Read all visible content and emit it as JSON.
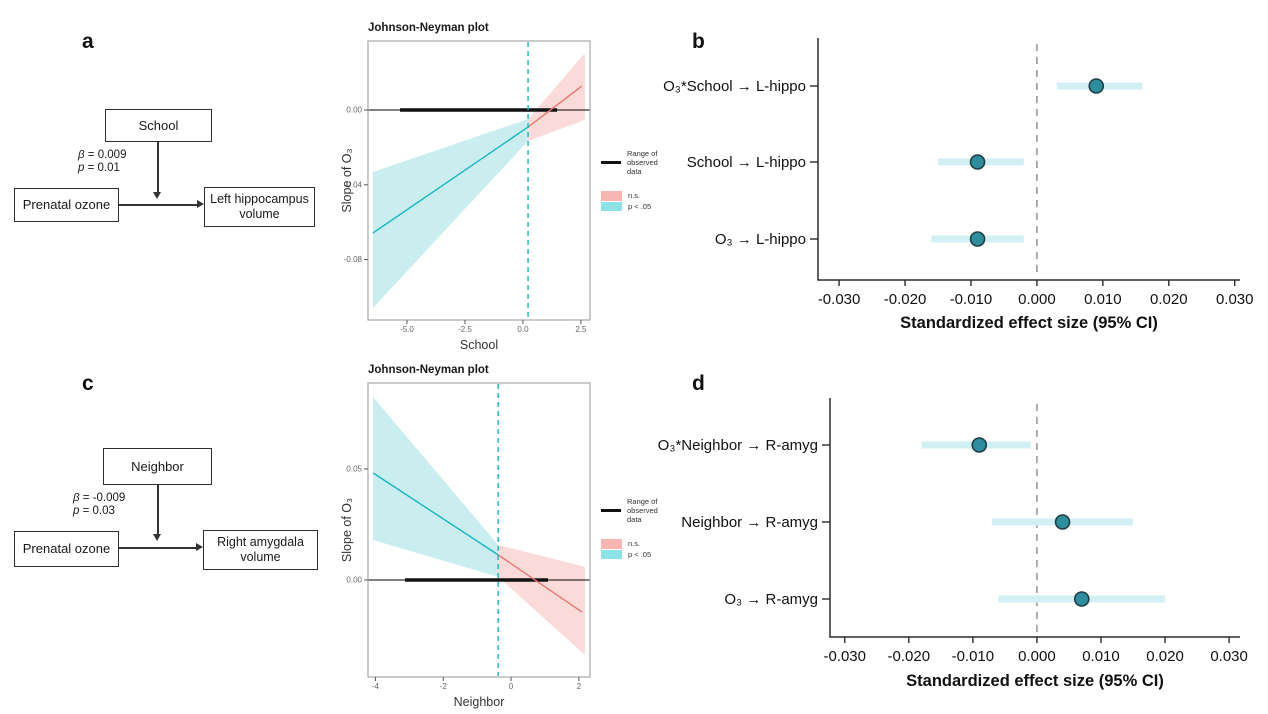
{
  "panel_labels": {
    "a": "a",
    "b": "b",
    "c": "c",
    "d": "d"
  },
  "diagram_a": {
    "moderator": "School",
    "beta_sym": "β",
    "beta_val": "= 0.009",
    "p_sym": "p",
    "p_val": "= 0.01",
    "predictor": "Prenatal ozone",
    "outcome": "Left hippocampus volume"
  },
  "diagram_c": {
    "moderator": "Neighbor",
    "beta_sym": "β",
    "beta_val": "= -0.009",
    "p_sym": "p",
    "p_val": "= 0.03",
    "predictor": "Prenatal ozone",
    "outcome": "Right amygdala volume"
  },
  "legend": {
    "range_label": "Range of observed data",
    "ns_label": "n.s.",
    "sig_label": "p < .05"
  },
  "colors": {
    "sig_line": "#18b5c2",
    "sig_fill": "#caeef0",
    "ns_line": "#e8766d",
    "ns_fill": "#fbdbd9",
    "threshold": "#18b5c2",
    "observed_line": "#111111",
    "zero_line": "#000000",
    "ci_bar": "#d2f0f4",
    "point_fill": "#2f8e9e",
    "point_stroke": "#1e3d45",
    "zero_dash": "#8a8a8a",
    "jn_border": "#a8a8a8",
    "axis": "#2b2b2b",
    "legend_ns_swatch": "#f8b5b1",
    "legend_sig_swatch": "#8ce2e6",
    "jn_tick_text": "#666666",
    "forest_text": "#111111"
  },
  "chart_data": [
    {
      "id": "jn_a",
      "type": "line",
      "panel": "a",
      "title": "Johnson-Neyman plot",
      "xlabel": "School",
      "ylabel": "Slope of O₃",
      "xlim": [
        -6.68,
        2.89
      ],
      "ylim": [
        -0.1123,
        0.0369
      ],
      "xticks": [
        {
          "v": -5.0,
          "label": "-5.0"
        },
        {
          "v": -2.5,
          "label": "-2.5"
        },
        {
          "v": 0.0,
          "label": "0.0"
        },
        {
          "v": 2.5,
          "label": "2.5"
        }
      ],
      "yticks": [
        {
          "v": 0.0,
          "label": "0.00"
        },
        {
          "v": -0.04,
          "label": "-0.04"
        },
        {
          "v": -0.08,
          "label": "-0.08"
        }
      ],
      "threshold_x": 0.22,
      "observed_range": [
        -5.3,
        1.47
      ],
      "zero_line_y": 0.0,
      "sig_line": {
        "x": [
          -6.47,
          0.22
        ],
        "y": [
          -0.0658,
          -0.0091
        ]
      },
      "sig_ribbon": {
        "x": [
          -6.47,
          0.22
        ],
        "top": [
          -0.0332,
          -0.0048
        ],
        "bottom": [
          -0.1059,
          -0.0166
        ]
      },
      "ns_line": {
        "x": [
          0.22,
          2.54
        ],
        "y": [
          -0.0091,
          0.0128
        ]
      },
      "ns_ribbon": {
        "x": [
          0.22,
          2.67
        ],
        "top": [
          -0.0048,
          0.0305
        ],
        "bottom": [
          -0.0166,
          -0.0053
        ]
      },
      "legend": [
        "Range of observed data",
        "n.s.",
        "p < .05"
      ]
    },
    {
      "id": "forest_b",
      "type": "forest",
      "panel": "b",
      "xlabel": "Standardized effect size (95% CI)",
      "xlim": [
        -0.0332,
        0.0308
      ],
      "zero_line": 0.0,
      "xticks": [
        {
          "v": -0.03,
          "label": "-0.030"
        },
        {
          "v": -0.02,
          "label": "-0.020"
        },
        {
          "v": -0.01,
          "label": "-0.010"
        },
        {
          "v": 0.0,
          "label": "0.000"
        },
        {
          "v": 0.01,
          "label": "0.010"
        },
        {
          "v": 0.02,
          "label": "0.020"
        },
        {
          "v": 0.03,
          "label": "0.030"
        }
      ],
      "rows": [
        {
          "label": "O₃*School → L-hippo",
          "estimate": 0.009,
          "ci_low": 0.003,
          "ci_high": 0.016
        },
        {
          "label": "School → L-hippo",
          "estimate": -0.009,
          "ci_low": -0.015,
          "ci_high": -0.002
        },
        {
          "label": "O₃ → L-hippo",
          "estimate": -0.009,
          "ci_low": -0.016,
          "ci_high": -0.002
        }
      ]
    },
    {
      "id": "jn_c",
      "type": "line",
      "panel": "c",
      "title": "Johnson-Neyman plot",
      "xlabel": "Neighbor",
      "ylabel": "Slope of O₃",
      "xlim": [
        -4.22,
        2.33
      ],
      "ylim": [
        -0.0437,
        0.0887
      ],
      "xticks": [
        {
          "v": -4,
          "label": "-4"
        },
        {
          "v": -2,
          "label": "-2"
        },
        {
          "v": 0,
          "label": "0"
        },
        {
          "v": 2,
          "label": "2"
        }
      ],
      "yticks": [
        {
          "v": 0.05,
          "label": "0.05"
        },
        {
          "v": 0.0,
          "label": "0.00"
        }
      ],
      "threshold_x": -0.38,
      "observed_range": [
        -3.13,
        1.09
      ],
      "zero_line_y": 0.0,
      "sig_line": {
        "x": [
          -4.07,
          -0.38
        ],
        "y": [
          0.0482,
          0.0113
        ]
      },
      "sig_ribbon": {
        "x": [
          -4.07,
          -0.38
        ],
        "top": [
          0.0824,
          0.0158
        ],
        "bottom": [
          0.018,
          0.0014
        ]
      },
      "ns_line": {
        "x": [
          -0.38,
          2.09
        ],
        "y": [
          0.0113,
          -0.0144
        ]
      },
      "ns_ribbon": {
        "x": [
          -0.38,
          2.18
        ],
        "top": [
          0.0158,
          0.0059
        ],
        "bottom": [
          0.0014,
          -0.0338
        ]
      },
      "legend": [
        "Range of observed data",
        "n.s.",
        "p < .05"
      ]
    },
    {
      "id": "forest_d",
      "type": "forest",
      "panel": "d",
      "xlabel": "Standardized effect size (95% CI)",
      "xlim": [
        -0.0323,
        0.0317
      ],
      "zero_line": 0.0,
      "xticks": [
        {
          "v": -0.03,
          "label": "-0.030"
        },
        {
          "v": -0.02,
          "label": "-0.020"
        },
        {
          "v": -0.01,
          "label": "-0.010"
        },
        {
          "v": 0.0,
          "label": "0.000"
        },
        {
          "v": 0.01,
          "label": "0.010"
        },
        {
          "v": 0.02,
          "label": "0.020"
        },
        {
          "v": 0.03,
          "label": "0.030"
        }
      ],
      "rows": [
        {
          "label": "O₃*Neighbor → R-amyg",
          "estimate": -0.009,
          "ci_low": -0.018,
          "ci_high": -0.001
        },
        {
          "label": "Neighbor → R-amyg",
          "estimate": 0.004,
          "ci_low": -0.007,
          "ci_high": 0.015
        },
        {
          "label": "O₃ → R-amyg",
          "estimate": 0.007,
          "ci_low": -0.006,
          "ci_high": 0.02
        }
      ]
    }
  ]
}
